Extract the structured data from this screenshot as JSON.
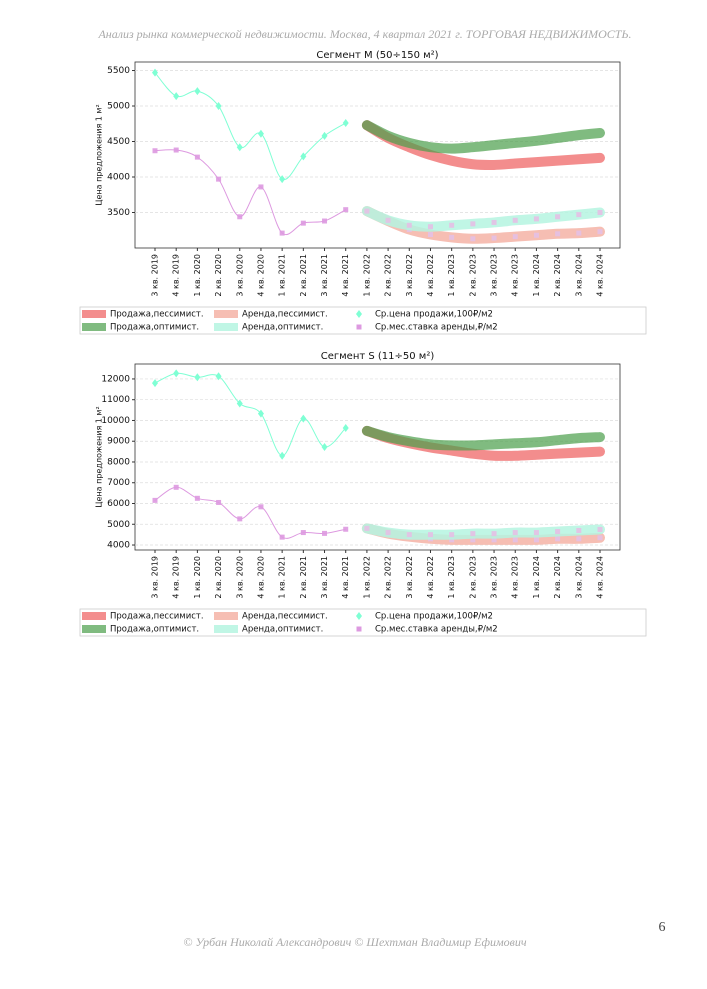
{
  "header": "Анализ рынка коммерческой недвижимости.  Москва,  4 квартал 2021 г.  ТОРГОВАЯ НЕДВИЖИМОСТЬ.",
  "footer": "© Урбан Николай Александрович   © Шехтман Владимир Ефимович",
  "page_number": "6",
  "chart_data": [
    {
      "type": "line",
      "title": "Сегмент М (50÷150 м²)",
      "y_label": "Цена предложения 1 м²",
      "categories": [
        "3 кв. 2019",
        "4 кв. 2019",
        "1 кв. 2020",
        "2 кв. 2020",
        "3 кв. 2020",
        "4 кв. 2020",
        "1 кв. 2021",
        "2 кв. 2021",
        "3 кв. 2021",
        "4 кв. 2021",
        "1 кв. 2022",
        "2 кв. 2022",
        "3 кв. 2022",
        "4 кв. 2022",
        "1 кв. 2023",
        "2 кв. 2023",
        "3 кв. 2023",
        "4 кв. 2023",
        "1 кв. 2024",
        "2 кв. 2024",
        "3 кв. 2024",
        "4 кв. 2024"
      ],
      "ylim": [
        3000,
        5620
      ],
      "yticks": [
        3500,
        4000,
        4500,
        5000,
        5500
      ],
      "grid": true,
      "series": [
        {
          "name": "Продажа,пессимист.",
          "color": "#f07070",
          "linewidth": 10,
          "alpha": 0.8,
          "values": [
            null,
            null,
            null,
            null,
            null,
            null,
            null,
            null,
            null,
            null,
            4730,
            4550,
            4420,
            4310,
            4230,
            4180,
            4170,
            4190,
            4210,
            4230,
            4250,
            4270
          ]
        },
        {
          "name": "Продажа,оптимист.",
          "color": "#4a9e4a",
          "linewidth": 10,
          "alpha": 0.7,
          "values": [
            null,
            null,
            null,
            null,
            null,
            null,
            null,
            null,
            null,
            null,
            4730,
            4580,
            4480,
            4420,
            4400,
            4420,
            4450,
            4480,
            4510,
            4550,
            4590,
            4620
          ]
        },
        {
          "name": "Аренда,пессимист.",
          "color": "#f4b3a6",
          "linewidth": 10,
          "alpha": 0.85,
          "marker": "square",
          "values": [
            null,
            null,
            null,
            null,
            null,
            null,
            null,
            null,
            null,
            null,
            3520,
            3380,
            3260,
            3190,
            3150,
            3130,
            3140,
            3160,
            3180,
            3200,
            3210,
            3230
          ]
        },
        {
          "name": "Аренда,оптимист.",
          "color": "#b5f5e0",
          "linewidth": 10,
          "alpha": 0.85,
          "marker": "square",
          "values": [
            null,
            null,
            null,
            null,
            null,
            null,
            null,
            null,
            null,
            null,
            3520,
            3390,
            3320,
            3300,
            3320,
            3340,
            3360,
            3390,
            3410,
            3440,
            3470,
            3500
          ]
        },
        {
          "name": "Ср.цена продажи,100₽/м2",
          "color": "#7fffd4",
          "linewidth": 1,
          "alpha": 1,
          "marker": "diamond",
          "values": [
            5470,
            5140,
            5210,
            5000,
            4420,
            4610,
            3970,
            4290,
            4580,
            4760,
            null,
            null,
            null,
            null,
            null,
            null,
            null,
            null,
            null,
            null,
            null,
            null
          ]
        },
        {
          "name": "Ср.мес.ставка аренды,₽/м2",
          "color": "#dd99e0",
          "linewidth": 1,
          "alpha": 1,
          "marker": "square",
          "values": [
            4370,
            4380,
            4280,
            3970,
            3440,
            3860,
            3210,
            3350,
            3380,
            3540,
            null,
            null,
            null,
            null,
            null,
            null,
            null,
            null,
            null,
            null,
            null,
            null
          ]
        }
      ]
    },
    {
      "type": "line",
      "title": "Сегмент S (11÷50 м²)",
      "y_label": "Цена предложения 1 м²",
      "categories": [
        "3 кв. 2019",
        "4 кв. 2019",
        "1 кв. 2020",
        "2 кв. 2020",
        "3 кв. 2020",
        "4 кв. 2020",
        "1 кв. 2021",
        "2 кв. 2021",
        "3 кв. 2021",
        "4 кв. 2021",
        "1 кв. 2022",
        "2 кв. 2022",
        "3 кв. 2022",
        "4 кв. 2022",
        "1 кв. 2023",
        "2 кв. 2023",
        "3 кв. 2023",
        "4 кв. 2023",
        "1 кв. 2024",
        "2 кв. 2024",
        "3 кв. 2024",
        "4 кв. 2024"
      ],
      "ylim": [
        3760,
        12720
      ],
      "yticks": [
        4000,
        5000,
        6000,
        7000,
        8000,
        9000,
        10000,
        11000,
        12000
      ],
      "grid": true,
      "series": [
        {
          "name": "Продажа,пессимист.",
          "color": "#f07070",
          "linewidth": 10,
          "alpha": 0.8,
          "values": [
            null,
            null,
            null,
            null,
            null,
            null,
            null,
            null,
            null,
            null,
            9500,
            9150,
            8900,
            8700,
            8550,
            8400,
            8300,
            8300,
            8350,
            8400,
            8450,
            8500
          ]
        },
        {
          "name": "Продажа,оптимист.",
          "color": "#4a9e4a",
          "linewidth": 10,
          "alpha": 0.7,
          "values": [
            null,
            null,
            null,
            null,
            null,
            null,
            null,
            null,
            null,
            null,
            9500,
            9200,
            9000,
            8850,
            8800,
            8800,
            8850,
            8900,
            8950,
            9050,
            9150,
            9200
          ]
        },
        {
          "name": "Аренда,пессимист.",
          "color": "#f4b3a6",
          "linewidth": 10,
          "alpha": 0.85,
          "marker": "square",
          "values": [
            null,
            null,
            null,
            null,
            null,
            null,
            null,
            null,
            null,
            null,
            4800,
            4550,
            4400,
            4300,
            4250,
            4250,
            4250,
            4250,
            4250,
            4300,
            4300,
            4350
          ]
        },
        {
          "name": "Аренда,оптимист.",
          "color": "#b5f5e0",
          "linewidth": 10,
          "alpha": 0.85,
          "marker": "square",
          "values": [
            null,
            null,
            null,
            null,
            null,
            null,
            null,
            null,
            null,
            null,
            4800,
            4600,
            4500,
            4500,
            4500,
            4550,
            4550,
            4600,
            4600,
            4650,
            4700,
            4750
          ]
        },
        {
          "name": "Ср.цена продажи,100₽/м2",
          "color": "#7fffd4",
          "linewidth": 1,
          "alpha": 1,
          "marker": "diamond",
          "values": [
            11800,
            12270,
            12080,
            12130,
            10820,
            10330,
            8300,
            10090,
            8720,
            9640,
            null,
            null,
            null,
            null,
            null,
            null,
            null,
            null,
            null,
            null,
            null,
            null
          ]
        },
        {
          "name": "Ср.мес.ставка аренды,₽/м2",
          "color": "#dd99e0",
          "linewidth": 1,
          "alpha": 1,
          "marker": "square",
          "values": [
            6150,
            6780,
            6250,
            6050,
            5260,
            5840,
            4380,
            4600,
            4560,
            4760,
            null,
            null,
            null,
            null,
            null,
            null,
            null,
            null,
            null,
            null,
            null,
            null
          ]
        }
      ]
    }
  ]
}
